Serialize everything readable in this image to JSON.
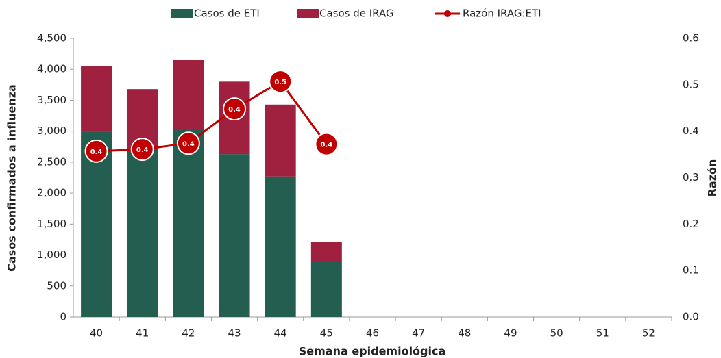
{
  "chart_data": {
    "type": "bar",
    "stacked": true,
    "x_label": "Semana epidemiológica",
    "y_label": "Casos confirmados a influenza",
    "y2_label": "Razón",
    "categories": [
      "40",
      "41",
      "42",
      "43",
      "44",
      "45",
      "46",
      "47",
      "48",
      "49",
      "50",
      "51",
      "52"
    ],
    "series": [
      {
        "name": "Casos de ETI",
        "color": "#245e51",
        "values": [
          2990,
          2720,
          3030,
          2630,
          2270,
          890,
          null,
          null,
          null,
          null,
          null,
          null,
          null
        ]
      },
      {
        "name": "Casos de IRAG",
        "color": "#a0213f",
        "values": [
          1060,
          960,
          1120,
          1170,
          1160,
          325,
          null,
          null,
          null,
          null,
          null,
          null,
          null
        ]
      },
      {
        "name": "Razón IRAG:ETI",
        "color": "#c00000",
        "type": "line",
        "axis": "y2",
        "values": [
          0.357,
          0.361,
          0.374,
          0.448,
          0.507,
          0.372,
          null,
          null,
          null,
          null,
          null,
          null,
          null
        ],
        "value_labels": [
          "0.4",
          "0.4",
          "0.4",
          "0.4",
          "0.5",
          "0.4",
          null,
          null,
          null,
          null,
          null,
          null,
          null
        ]
      }
    ],
    "ylim": [
      0,
      4500
    ],
    "yticks": [
      0,
      500,
      {
        "value": 1000,
        "label": "1,000"
      },
      {
        "value": 1500,
        "label": "1,500"
      },
      {
        "value": 2000,
        "label": "2,000"
      },
      {
        "value": 2500,
        "label": "2,500"
      },
      {
        "value": 3000,
        "label": "3,000"
      },
      {
        "value": 3500,
        "label": "3,500"
      },
      {
        "value": 4000,
        "label": "4,000"
      },
      {
        "value": 4500,
        "label": "4,500"
      }
    ],
    "y2lim": [
      0,
      0.6
    ],
    "y2ticks": [
      {
        "value": 0,
        "label": "0.0"
      },
      0.1,
      0.2,
      0.3,
      0.4,
      0.5,
      0.6
    ],
    "legend": "top"
  }
}
